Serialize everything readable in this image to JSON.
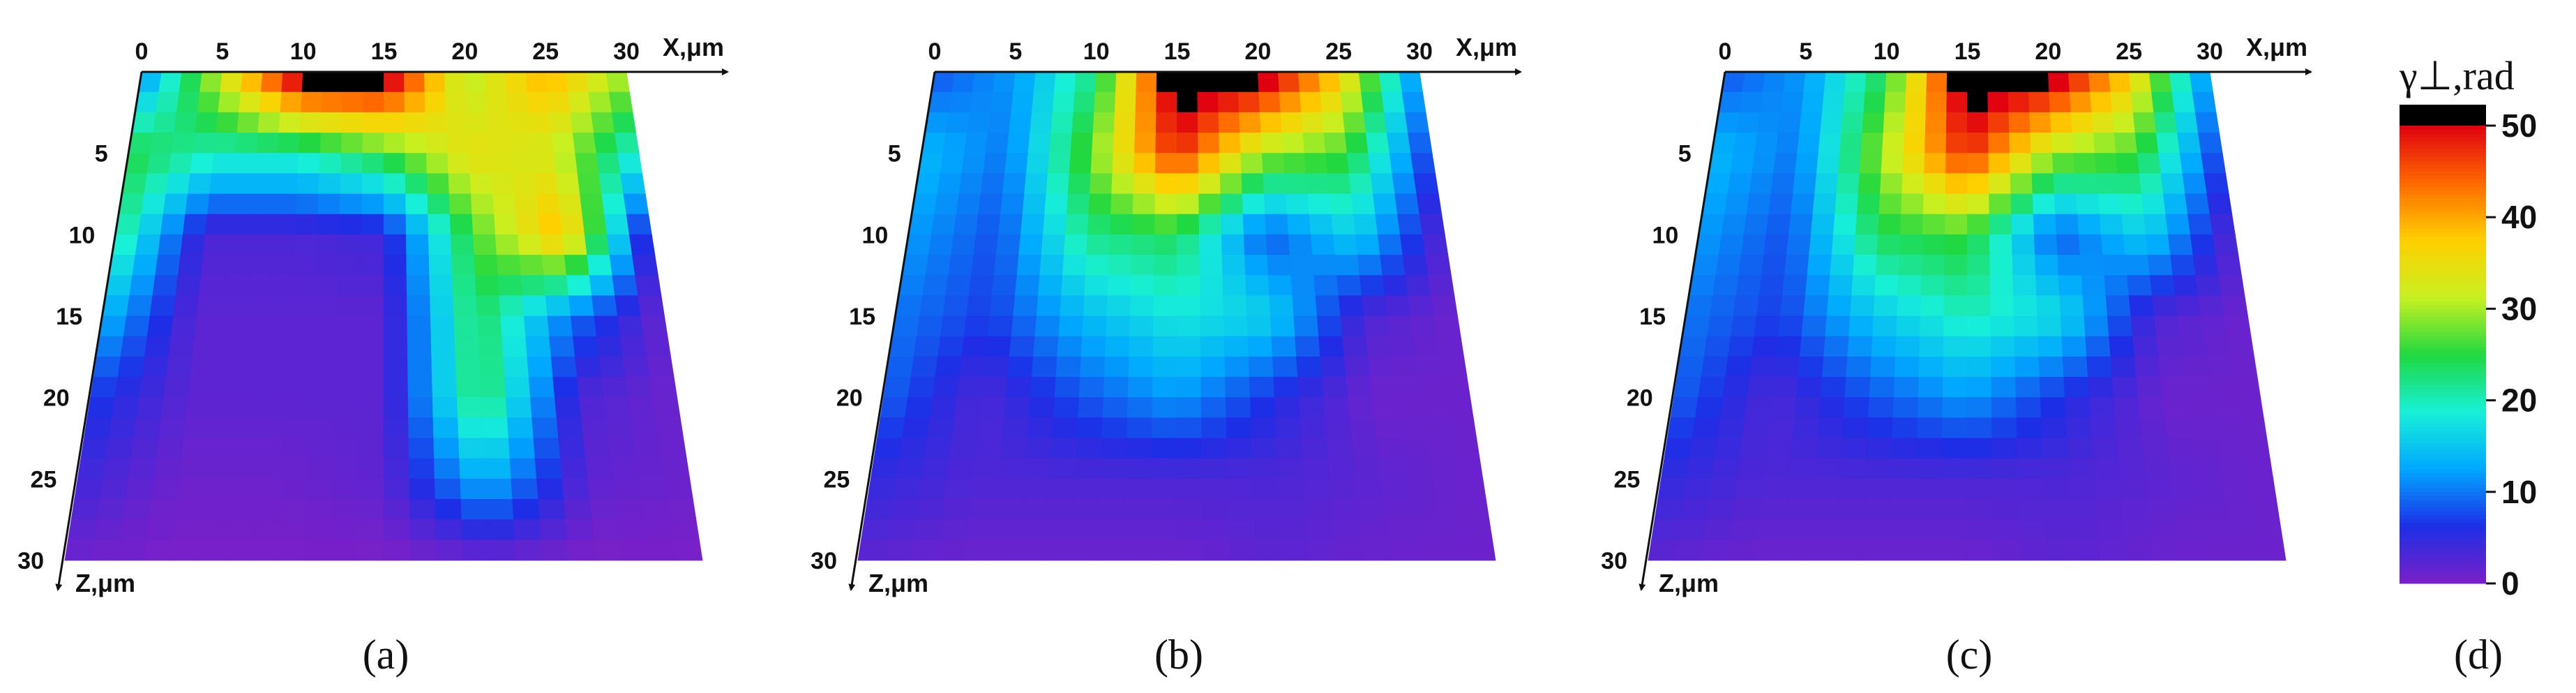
{
  "panels": [
    {
      "caption": "(a)"
    },
    {
      "caption": "(b)"
    },
    {
      "caption": "(c)"
    }
  ],
  "colorbar_caption": "(d)",
  "chart_data": {
    "type": "heatmap",
    "x_axis": {
      "label": "X,μm",
      "ticks": [
        "0",
        "5",
        "10",
        "15",
        "20",
        "25",
        "30"
      ],
      "range": [
        0,
        30
      ]
    },
    "z_axis": {
      "label": "Z,μm",
      "ticks": [
        "5",
        "10",
        "15",
        "20",
        "25",
        "30"
      ],
      "range": [
        0,
        30
      ]
    },
    "colorbar": {
      "title": "γ⊥,rad",
      "ticks": [
        "0",
        "10",
        "20",
        "30",
        "40",
        "50"
      ],
      "range": [
        0,
        50
      ],
      "over_color": "#000000",
      "colormap": [
        "#7a20c8",
        "#1d2ee6",
        "#00a8ff",
        "#18f0d8",
        "#20d840",
        "#c8f020",
        "#ffd000",
        "#ff6a00",
        "#e00010"
      ]
    },
    "panels": [
      {
        "caption": "(a)",
        "grid_step_um": 5,
        "values": [
          [
            10,
            33,
            55,
            55,
            30,
            40,
            30
          ],
          [
            25,
            20,
            20,
            26,
            35,
            32,
            18
          ],
          [
            22,
            3,
            3,
            4,
            26,
            40,
            2
          ],
          [
            14,
            2,
            2,
            2,
            24,
            10,
            1
          ],
          [
            7,
            2,
            2,
            2,
            24,
            3,
            1
          ],
          [
            4,
            1,
            1,
            2,
            14,
            2,
            1
          ],
          [
            1,
            0,
            0,
            0,
            1,
            0,
            0
          ]
        ]
      },
      {
        "caption": "(b)",
        "grid_step_um": 5,
        "values": [
          [
            8,
            12,
            22,
            55,
            55,
            38,
            10
          ],
          [
            14,
            10,
            28,
            48,
            30,
            26,
            6
          ],
          [
            12,
            8,
            22,
            24,
            8,
            16,
            2
          ],
          [
            10,
            7,
            14,
            18,
            16,
            3,
            1
          ],
          [
            9,
            3,
            8,
            12,
            6,
            1,
            1
          ],
          [
            5,
            3,
            3,
            3,
            3,
            2,
            1
          ],
          [
            2,
            1,
            1,
            1,
            2,
            1,
            1
          ]
        ]
      },
      {
        "caption": "(c)",
        "grid_step_um": 5,
        "values": [
          [
            8,
            12,
            24,
            55,
            55,
            38,
            10
          ],
          [
            14,
            10,
            30,
            48,
            30,
            26,
            6
          ],
          [
            12,
            8,
            24,
            26,
            8,
            16,
            2
          ],
          [
            10,
            7,
            15,
            20,
            17,
            3,
            1
          ],
          [
            9,
            3,
            8,
            12,
            6,
            1,
            1
          ],
          [
            5,
            3,
            3,
            3,
            3,
            2,
            1
          ],
          [
            2,
            1,
            1,
            1,
            2,
            1,
            1
          ]
        ]
      }
    ]
  }
}
